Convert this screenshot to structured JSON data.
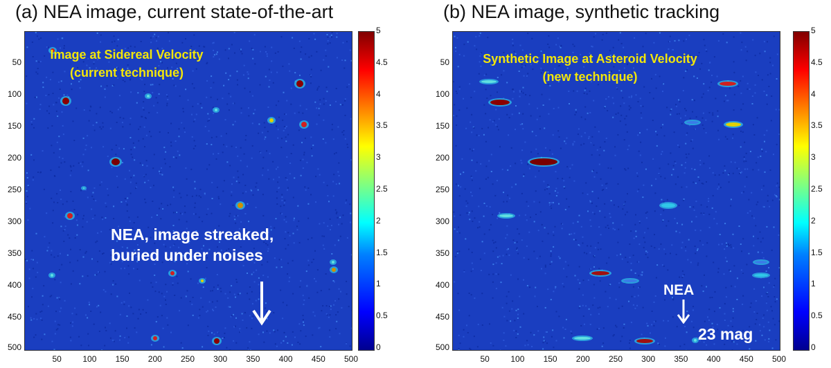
{
  "panel_a": {
    "title": "(a) NEA image, current state-of-the-art",
    "overlay_line1": "Image at Sidereal Velocity",
    "overlay_line2": "(current technique)",
    "annotation_line1": "NEA, image streaked,",
    "annotation_line2": "buried under noises",
    "arrow": "down-arrow-icon"
  },
  "panel_b": {
    "title": "(b) NEA image, synthetic tracking",
    "overlay_line1": "Synthetic Image at Asteroid Velocity",
    "overlay_line2": "(new technique)",
    "nea_label": "NEA",
    "magnitude_label": "23 mag",
    "arrow": "down-arrow-icon"
  },
  "axes": {
    "y_ticks": [
      "50",
      "100",
      "150",
      "200",
      "250",
      "300",
      "350",
      "400",
      "450",
      "500"
    ],
    "x_ticks": [
      "50",
      "100",
      "150",
      "200",
      "250",
      "300",
      "350",
      "400",
      "450",
      "500"
    ]
  },
  "colorbar_a": [
    "5",
    "4.5",
    "4",
    "3.5",
    "3",
    "2.5",
    "2",
    "1.5",
    "1",
    "0.5",
    "0"
  ],
  "colorbar_b": [
    "5",
    "4.5",
    "4",
    "3.5",
    "3",
    "2.5",
    "2",
    "1.5",
    "1",
    "0.5",
    "0"
  ],
  "colors": {
    "background": "#1a3ec0",
    "overlay_text": "#f2e60a",
    "annotation_text": "#ffffff"
  }
}
